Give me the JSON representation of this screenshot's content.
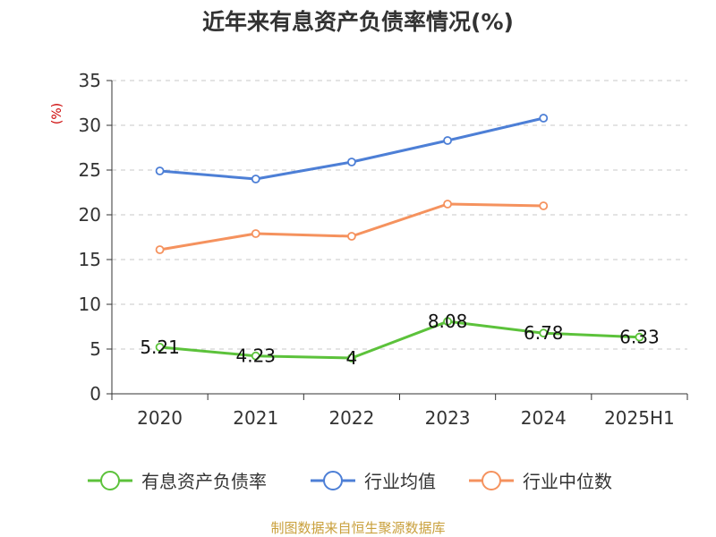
{
  "chart_data": {
    "type": "line",
    "title": "近年来有息资产负债率情况(%)",
    "unit": "(%)",
    "categories": [
      "2020",
      "2021",
      "2022",
      "2023",
      "2024",
      "2025H1"
    ],
    "ylim": [
      0,
      35
    ],
    "yticks": [
      0,
      5,
      10,
      15,
      20,
      25,
      30,
      35
    ],
    "grid": true,
    "legend_position": "bottom",
    "series": [
      {
        "name": "有息资产负债率",
        "color": "#5cc23b",
        "values": [
          5.21,
          4.23,
          4,
          8.08,
          6.78,
          6.33
        ],
        "labels": [
          "5.21",
          "4.23",
          "4",
          "8.08",
          "6.78",
          "6.33"
        ]
      },
      {
        "name": "行业均值",
        "color": "#4d7fd6",
        "values": [
          24.9,
          24.0,
          25.9,
          28.3,
          30.8,
          null
        ]
      },
      {
        "name": "行业中位数",
        "color": "#f5925e",
        "values": [
          16.1,
          17.9,
          17.6,
          21.2,
          21.0,
          null
        ]
      }
    ],
    "source": "制图数据来自恒生聚源数据库"
  }
}
